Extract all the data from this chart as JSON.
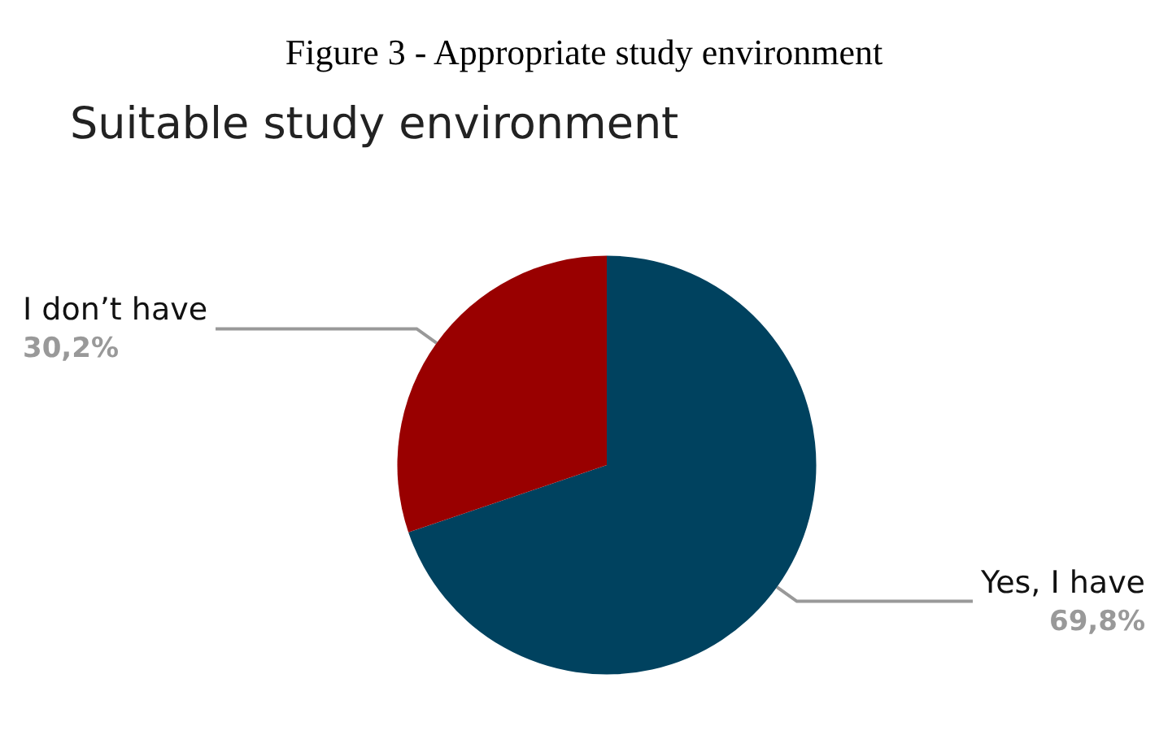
{
  "chart_data": {
    "type": "pie",
    "title": "Figure 3 - Appropriate study environment",
    "subtitle": "Suitable study environment",
    "categories": [
      "Yes, I have",
      "I don’t have"
    ],
    "values": [
      69.8,
      30.2
    ],
    "colors": [
      "#00425f",
      "#990000"
    ],
    "value_labels": [
      "69,8%",
      "30,2%"
    ],
    "legend": false
  }
}
